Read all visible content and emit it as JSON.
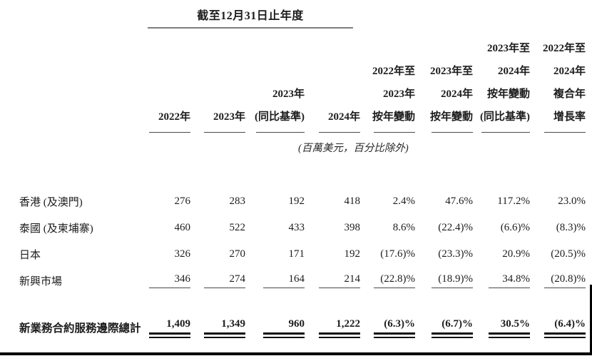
{
  "table": {
    "span_header": "截至12月31日止年度",
    "unit_note": "(百萬美元，百分比除外)",
    "columns": [
      {
        "lines": [
          "2022年"
        ]
      },
      {
        "lines": [
          "2023年"
        ]
      },
      {
        "lines": [
          "2023年",
          "(同比基準)"
        ]
      },
      {
        "lines": [
          "2024年"
        ]
      },
      {
        "lines": [
          "2022年至",
          "2023年",
          "按年變動"
        ]
      },
      {
        "lines": [
          "2023年至",
          "2024年",
          "按年變動"
        ]
      },
      {
        "lines": [
          "2023年至",
          "2024年",
          "按年變動",
          "(同比基準)"
        ]
      },
      {
        "lines": [
          "2022年至",
          "2024年",
          "複合年",
          "增長率"
        ]
      }
    ],
    "rows": [
      {
        "label": "香港 (及澳門)",
        "values": [
          "276",
          "283",
          "192",
          "418",
          "2.4%",
          "47.6%",
          "117.2%",
          "23.0%"
        ]
      },
      {
        "label": "泰國 (及柬埔寨)",
        "values": [
          "460",
          "522",
          "433",
          "398",
          "8.6%",
          "(22.4)%",
          "(6.6)%",
          "(8.3)%"
        ]
      },
      {
        "label": "日本",
        "values": [
          "326",
          "270",
          "171",
          "192",
          "(17.6)%",
          "(23.3)%",
          "20.9%",
          "(20.5)%"
        ]
      },
      {
        "label": "新興市場",
        "values": [
          "346",
          "274",
          "164",
          "214",
          "(22.8)%",
          "(18.9)%",
          "34.8%",
          "(20.8)%"
        ]
      }
    ],
    "total": {
      "label": "新業務合約服務邊際總計",
      "values": [
        "1,409",
        "1,349",
        "960",
        "1,222",
        "(6.3)%",
        "(6.7)%",
        "30.5%",
        "(6.4)%"
      ]
    }
  }
}
